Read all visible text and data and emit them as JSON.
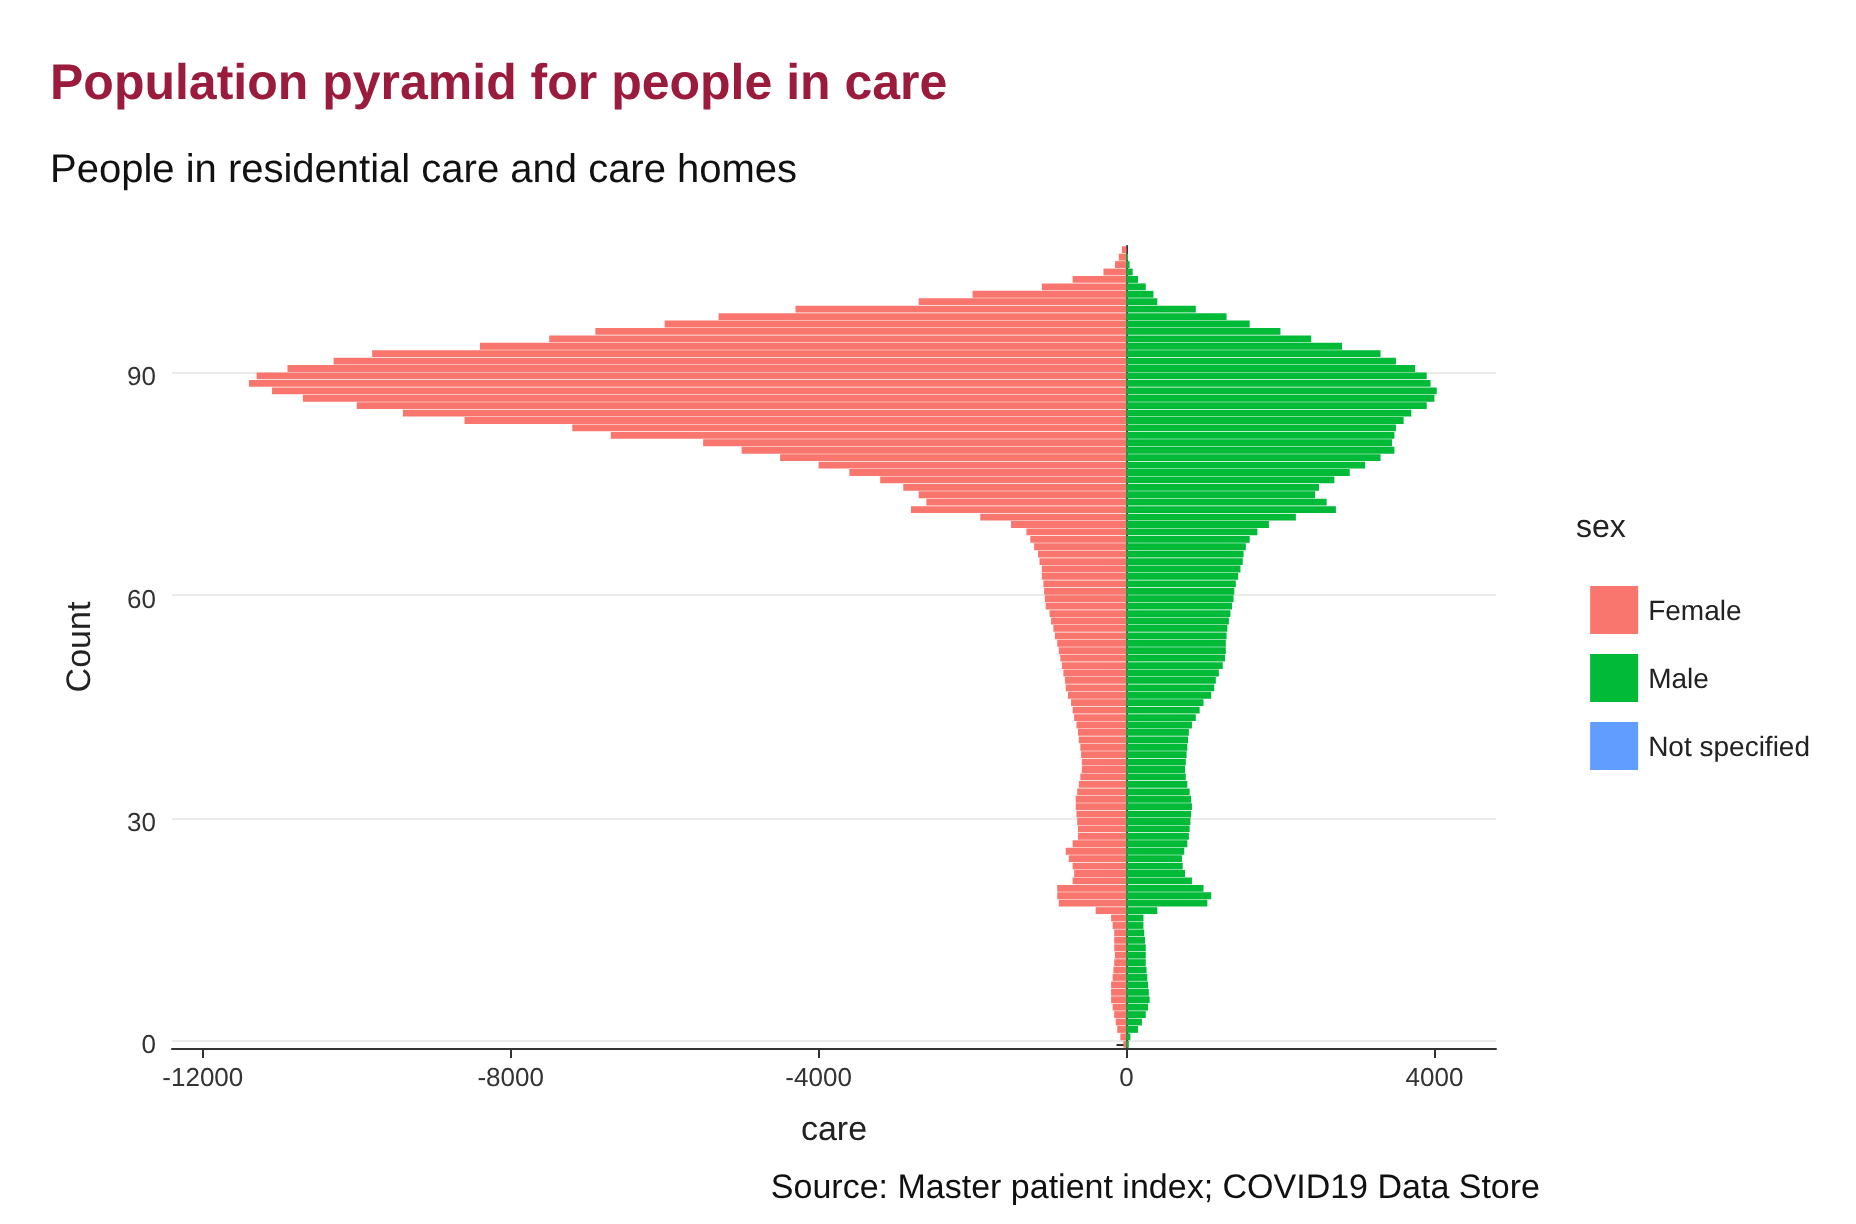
{
  "chart_data": {
    "type": "bar",
    "orientation": "horizontal",
    "stacked": true,
    "title": "Population pyramid for people in care",
    "subtitle": "People in residential care and care homes",
    "xlabel": "care",
    "ylabel": "Count",
    "legend_title": "sex",
    "annotations": [
      "Source: Master patient index; COVID19 Data Store"
    ],
    "categories": [
      null,
      null,
      null,
      null,
      null,
      null,
      null,
      null,
      null,
      null,
      null,
      null,
      null,
      null,
      null,
      null,
      null,
      "90",
      null,
      null,
      null,
      null,
      null,
      null,
      null,
      null,
      null,
      null,
      null,
      null,
      null,
      null,
      null,
      null,
      null,
      null,
      null,
      null,
      null,
      null,
      null,
      null,
      null,
      null,
      null,
      null,
      null,
      "60",
      null,
      null,
      null,
      null,
      null,
      null,
      null,
      null,
      null,
      null,
      null,
      null,
      null,
      null,
      null,
      null,
      null,
      null,
      null,
      null,
      null,
      null,
      null,
      null,
      null,
      null,
      null,
      null,
      null,
      "30",
      null,
      null,
      null,
      null,
      null,
      null,
      null,
      null,
      null,
      null,
      null,
      null,
      null,
      null,
      null,
      null,
      null,
      null,
      null,
      null,
      null,
      null,
      null,
      null,
      null,
      null,
      null,
      null,
      null,
      "0"
    ],
    "series": [
      {
        "name": "Female",
        "color": "#f8766d",
        "values": [
          -60,
          -100,
          -150,
          -300,
          -700,
          -1100,
          -2000,
          -2700,
          -4300,
          -5300,
          -6000,
          -6900,
          -7500,
          -8400,
          -9800,
          -10300,
          -10900,
          -11300,
          -11400,
          -11100,
          -10700,
          -10000,
          -9400,
          -8600,
          -7200,
          -6700,
          -5500,
          -5000,
          -4500,
          -4000,
          -3600,
          -3200,
          -2900,
          -2700,
          -2600,
          -2800,
          -1900,
          -1500,
          -1300,
          -1250,
          -1200,
          -1150,
          -1130,
          -1100,
          -1100,
          -1080,
          -1070,
          -1060,
          -1050,
          -1000,
          -980,
          -950,
          -930,
          -900,
          -880,
          -860,
          -840,
          -820,
          -800,
          -790,
          -760,
          -720,
          -700,
          -680,
          -650,
          -630,
          -620,
          -600,
          -590,
          -580,
          -580,
          -600,
          -620,
          -640,
          -660,
          -660,
          -650,
          -640,
          -630,
          -630,
          -700,
          -790,
          -750,
          -700,
          -680,
          -700,
          -900,
          -900,
          -880,
          -400,
          -200,
          -180,
          -160,
          -160,
          -160,
          -150,
          -160,
          -170,
          -180,
          -200,
          -200,
          -200,
          -180,
          -160,
          -140,
          -120,
          -80,
          -40
        ]
      },
      {
        "name": "Male",
        "color": "#00ba38",
        "values": [
          0,
          20,
          40,
          80,
          150,
          250,
          350,
          400,
          900,
          1300,
          1600,
          2000,
          2400,
          2800,
          3300,
          3500,
          3750,
          3900,
          3950,
          4030,
          4000,
          3900,
          3700,
          3600,
          3500,
          3480,
          3450,
          3480,
          3300,
          3100,
          2900,
          2700,
          2500,
          2450,
          2600,
          2720,
          2200,
          1850,
          1700,
          1600,
          1550,
          1520,
          1510,
          1480,
          1450,
          1420,
          1400,
          1390,
          1370,
          1350,
          1330,
          1310,
          1300,
          1290,
          1290,
          1280,
          1250,
          1200,
          1160,
          1140,
          1100,
          1000,
          950,
          900,
          850,
          810,
          800,
          790,
          780,
          770,
          760,
          770,
          790,
          820,
          840,
          850,
          840,
          830,
          820,
          810,
          790,
          750,
          720,
          730,
          760,
          850,
          1000,
          1100,
          1050,
          400,
          220,
          220,
          230,
          240,
          250,
          250,
          250,
          260,
          270,
          280,
          290,
          300,
          280,
          250,
          200,
          150,
          50,
          30
        ]
      },
      {
        "name": "Not specified",
        "color": "#619cff",
        "values": [
          null,
          null,
          null,
          null,
          null,
          null,
          null,
          null,
          null,
          null,
          null,
          null,
          null,
          null,
          null,
          null,
          null,
          null,
          null,
          null,
          null,
          null,
          null,
          null,
          null,
          null,
          null,
          null,
          null,
          null,
          null,
          null,
          null,
          null,
          null,
          null,
          null,
          null,
          null,
          null,
          null,
          null,
          null,
          null,
          null,
          null,
          null,
          null,
          null,
          null,
          null,
          null,
          null,
          null,
          null,
          null,
          null,
          null,
          null,
          null,
          null,
          null,
          null,
          null,
          null,
          null,
          null,
          null,
          null,
          null,
          null,
          null,
          null,
          null,
          null,
          null,
          null,
          null,
          null,
          null,
          null,
          null,
          null,
          null,
          null,
          null,
          null,
          null,
          null,
          null,
          null,
          null,
          null,
          null,
          null,
          null,
          null,
          null,
          null,
          null,
          null,
          null,
          null,
          null,
          null,
          null,
          null,
          null
        ]
      }
    ],
    "xlim": [
      -12400,
      4800
    ],
    "xticks": [
      -12000,
      -8000,
      -4000,
      0,
      4000
    ],
    "grid": "y",
    "legend": "right"
  }
}
